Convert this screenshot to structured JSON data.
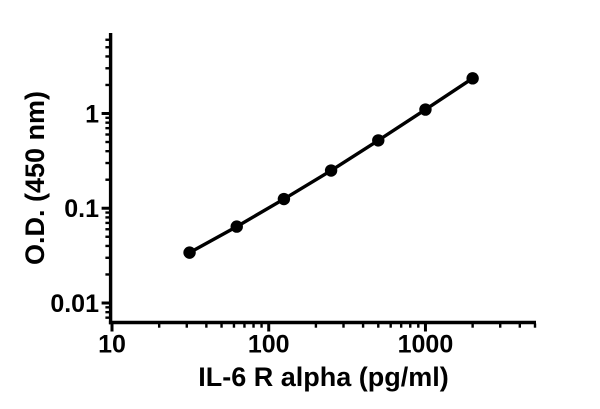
{
  "figure": {
    "background_color": "#ffffff",
    "axis_color": "#000000"
  },
  "chart_data": {
    "type": "line",
    "xlabel": "IL-6 R alpha (pg/ml)",
    "ylabel": "O.D. (450 nm)",
    "x_scale": "log10",
    "y_scale": "log10",
    "xlim": [
      10,
      5000
    ],
    "ylim": [
      0.0063,
      6.9
    ],
    "x_major_ticks": [
      10,
      100,
      1000
    ],
    "x_tick_labels": [
      "10",
      "100",
      "1000"
    ],
    "y_major_ticks": [
      1,
      0.1,
      0.01
    ],
    "y_tick_labels": [
      "1",
      "0.1",
      "0.01"
    ],
    "minor_ticks": "log",
    "grid": false,
    "legend": false,
    "marker": "filled-circle",
    "marker_color": "#000000",
    "line_color": "#000000",
    "x": [
      31.25,
      62.5,
      125,
      250,
      500,
      1000,
      2000
    ],
    "y": [
      0.034,
      0.064,
      0.125,
      0.25,
      0.52,
      1.1,
      2.35
    ]
  }
}
